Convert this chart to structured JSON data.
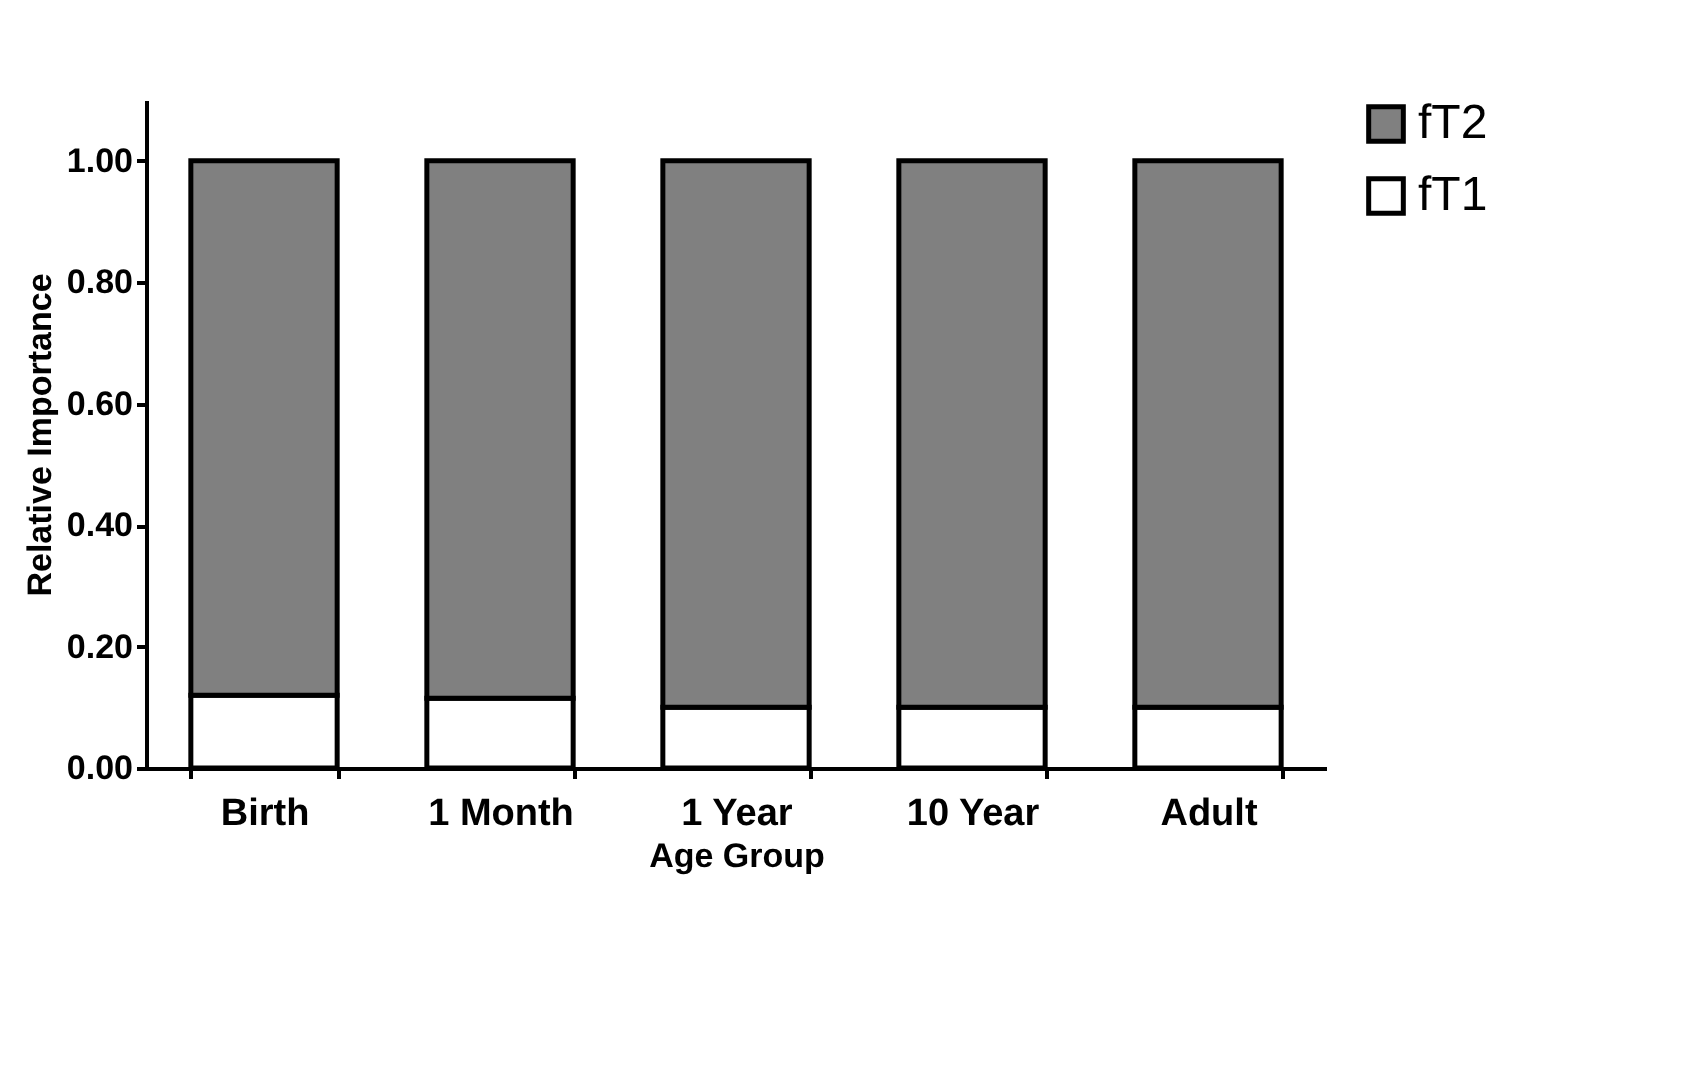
{
  "chart_data": {
    "type": "bar",
    "xlabel": "Age Group",
    "ylabel": "Relative Importance",
    "categories": [
      "Birth",
      "1 Month",
      "1 Year",
      "10 Year",
      "Adult"
    ],
    "stacked": true,
    "series": [
      {
        "name": "fT1",
        "color": "#ffffff",
        "values": [
          0.12,
          0.115,
          0.1,
          0.1,
          0.1
        ]
      },
      {
        "name": "fT2",
        "color": "#808080",
        "values": [
          0.88,
          0.885,
          0.9,
          0.9,
          0.9
        ]
      }
    ],
    "ylim": [
      0,
      1.1
    ],
    "yticks": [
      {
        "value": 0,
        "label": "0.00"
      },
      {
        "value": 0.2,
        "label": "0.20"
      },
      {
        "value": 0.4,
        "label": "0.40"
      },
      {
        "value": 0.6,
        "label": "0.60"
      },
      {
        "value": 0.8,
        "label": "0.80"
      },
      {
        "value": 1,
        "label": "1.00"
      }
    ],
    "grid": false,
    "legend": "right"
  }
}
